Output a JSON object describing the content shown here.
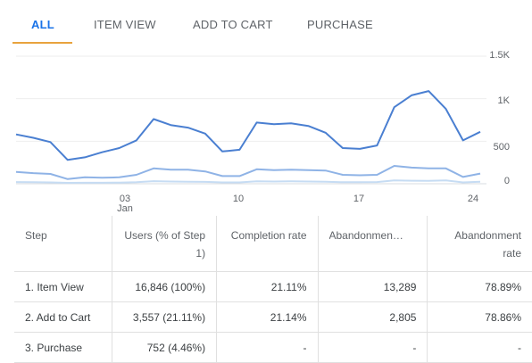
{
  "tabs": [
    "ALL",
    "ITEM VIEW",
    "ADD TO CART",
    "PURCHASE"
  ],
  "chart_data": {
    "type": "line",
    "x_labels": [
      "03",
      "10",
      "17",
      "24"
    ],
    "x_sublabel": "Jan",
    "y_ticks": [
      "1.5K",
      "1K",
      "500",
      "0"
    ],
    "ylim": [
      0,
      1500
    ],
    "grid": true,
    "series": [
      {
        "color": "#4a7fd1",
        "values": [
          580,
          540,
          490,
          280,
          310,
          370,
          420,
          510,
          760,
          690,
          660,
          590,
          380,
          400,
          720,
          700,
          710,
          680,
          600,
          420,
          410,
          450,
          900,
          1040,
          1090,
          880,
          510,
          610
        ]
      },
      {
        "color": "#8fb3e6",
        "values": [
          140,
          125,
          115,
          55,
          75,
          70,
          75,
          105,
          180,
          165,
          165,
          145,
          90,
          90,
          170,
          160,
          165,
          160,
          155,
          105,
          100,
          105,
          210,
          190,
          180,
          180,
          80,
          120
        ]
      },
      {
        "color": "#c6dcf3",
        "values": [
          20,
          18,
          16,
          10,
          12,
          12,
          14,
          18,
          30,
          26,
          24,
          22,
          16,
          16,
          28,
          26,
          28,
          26,
          24,
          18,
          18,
          20,
          40,
          36,
          34,
          40,
          16,
          24
        ]
      }
    ]
  },
  "table": {
    "headers": [
      "Step",
      "Users (% of Step 1)",
      "Completion rate",
      "Abandonmen…",
      "Abandonment rate"
    ],
    "rows": [
      [
        "1. Item View",
        "16,846 (100%)",
        "21.11%",
        "13,289",
        "78.89%"
      ],
      [
        "2. Add to Cart",
        "3,557 (21.11%)",
        "21.14%",
        "2,805",
        "78.86%"
      ],
      [
        "3. Purchase",
        "752 (4.46%)",
        "-",
        "-",
        "-"
      ]
    ]
  }
}
